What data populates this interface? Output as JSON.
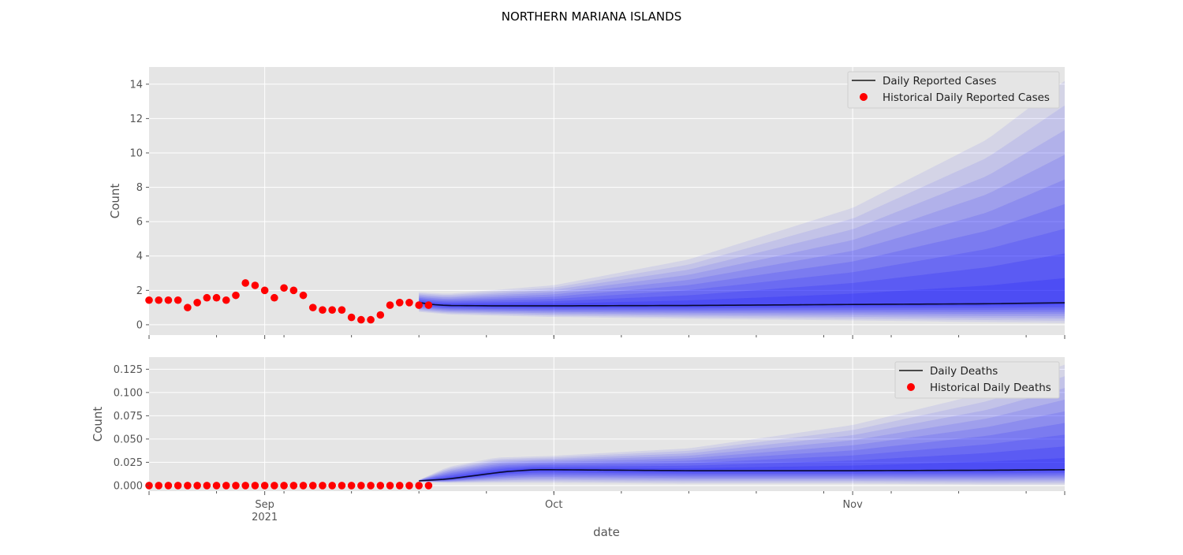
{
  "title": "NORTHERN MARIANA ISLANDS",
  "xlabel": "date",
  "x_ticks": [
    {
      "date": "2021-09-01",
      "label": "Sep",
      "sublabel": "2021"
    },
    {
      "date": "2021-10-01",
      "label": "Oct",
      "sublabel": ""
    },
    {
      "date": "2021-11-01",
      "label": "Nov",
      "sublabel": ""
    }
  ],
  "xlim": [
    "2021-08-20",
    "2021-11-23"
  ],
  "forecast_start": "2021-09-17",
  "colors": {
    "background": "#e5e5e5",
    "grid": "#ffffff",
    "line": "#000000",
    "points": "#ff0000",
    "band": "#0000ff"
  },
  "chart_data": [
    {
      "type": "line",
      "ylabel": "Count",
      "ylim": [
        -0.6,
        15
      ],
      "yticks": [
        0,
        2,
        4,
        6,
        8,
        10,
        12,
        14
      ],
      "grid": true,
      "legend_placement": "top-right",
      "series": [
        {
          "name": "Daily Reported Cases",
          "kind": "line",
          "x": [
            "2021-09-17",
            "2021-09-18",
            "2021-09-19",
            "2021-09-20",
            "2021-09-25",
            "2021-10-01",
            "2021-10-15",
            "2021-11-01",
            "2021-11-15",
            "2021-11-23"
          ],
          "y": [
            1.3,
            1.2,
            1.15,
            1.12,
            1.1,
            1.1,
            1.12,
            1.18,
            1.22,
            1.28
          ]
        },
        {
          "name": "Historical Daily Reported Cases",
          "kind": "scatter",
          "x": [
            "2021-08-20",
            "2021-08-21",
            "2021-08-22",
            "2021-08-23",
            "2021-08-24",
            "2021-08-25",
            "2021-08-26",
            "2021-08-27",
            "2021-08-28",
            "2021-08-29",
            "2021-08-30",
            "2021-08-31",
            "2021-09-01",
            "2021-09-02",
            "2021-09-03",
            "2021-09-04",
            "2021-09-05",
            "2021-09-06",
            "2021-09-07",
            "2021-09-08",
            "2021-09-09",
            "2021-09-10",
            "2021-09-11",
            "2021-09-12",
            "2021-09-13",
            "2021-09-14",
            "2021-09-15",
            "2021-09-16",
            "2021-09-17",
            "2021-09-18"
          ],
          "y": [
            1.43,
            1.43,
            1.43,
            1.43,
            1.0,
            1.29,
            1.57,
            1.57,
            1.43,
            1.71,
            2.43,
            2.29,
            2.0,
            1.57,
            2.14,
            2.0,
            1.71,
            1.0,
            0.86,
            0.86,
            0.86,
            0.43,
            0.29,
            0.29,
            0.57,
            1.14,
            1.29,
            1.29,
            1.14,
            1.14
          ]
        }
      ],
      "uncertainty_band": {
        "x": [
          "2021-09-17",
          "2021-09-20",
          "2021-10-01",
          "2021-10-15",
          "2021-11-01",
          "2021-11-15",
          "2021-11-23"
        ],
        "upper_outer": [
          1.9,
          1.8,
          2.3,
          3.8,
          6.8,
          10.8,
          14.2
        ],
        "lower_outer": [
          0.75,
          0.6,
          0.45,
          0.35,
          0.25,
          0.15,
          0.1
        ]
      }
    },
    {
      "type": "line",
      "ylabel": "Count",
      "ylim": [
        -0.006,
        0.138
      ],
      "yticks": [
        0.0,
        0.025,
        0.05,
        0.075,
        0.1,
        0.125
      ],
      "ytick_labels": [
        "0.000",
        "0.025",
        "0.050",
        "0.075",
        "0.100",
        "0.125"
      ],
      "grid": true,
      "legend_placement": "top-right",
      "series": [
        {
          "name": "Daily Deaths",
          "kind": "line",
          "x": [
            "2021-09-17",
            "2021-09-20",
            "2021-09-23",
            "2021-09-26",
            "2021-09-29",
            "2021-10-01",
            "2021-10-15",
            "2021-11-01",
            "2021-11-15",
            "2021-11-23"
          ],
          "y": [
            0.005,
            0.007,
            0.011,
            0.015,
            0.017,
            0.017,
            0.016,
            0.016,
            0.0165,
            0.017
          ]
        },
        {
          "name": "Historical Daily Deaths",
          "kind": "scatter",
          "x": [
            "2021-08-20",
            "2021-08-21",
            "2021-08-22",
            "2021-08-23",
            "2021-08-24",
            "2021-08-25",
            "2021-08-26",
            "2021-08-27",
            "2021-08-28",
            "2021-08-29",
            "2021-08-30",
            "2021-08-31",
            "2021-09-01",
            "2021-09-02",
            "2021-09-03",
            "2021-09-04",
            "2021-09-05",
            "2021-09-06",
            "2021-09-07",
            "2021-09-08",
            "2021-09-09",
            "2021-09-10",
            "2021-09-11",
            "2021-09-12",
            "2021-09-13",
            "2021-09-14",
            "2021-09-15",
            "2021-09-16",
            "2021-09-17",
            "2021-09-18"
          ],
          "y": [
            0,
            0,
            0,
            0,
            0,
            0,
            0,
            0,
            0,
            0,
            0,
            0,
            0,
            0,
            0,
            0,
            0,
            0,
            0,
            0,
            0,
            0,
            0,
            0,
            0,
            0,
            0,
            0,
            0,
            0
          ]
        }
      ],
      "uncertainty_band": {
        "x": [
          "2021-09-17",
          "2021-09-20",
          "2021-09-25",
          "2021-10-01",
          "2021-10-15",
          "2021-11-01",
          "2021-11-15",
          "2021-11-23"
        ],
        "upper_outer": [
          0.006,
          0.02,
          0.03,
          0.032,
          0.04,
          0.065,
          0.1,
          0.13
        ],
        "lower_outer": [
          0.004,
          0.003,
          0.003,
          0.003,
          0.002,
          0.002,
          0.001,
          0.001
        ]
      }
    }
  ]
}
